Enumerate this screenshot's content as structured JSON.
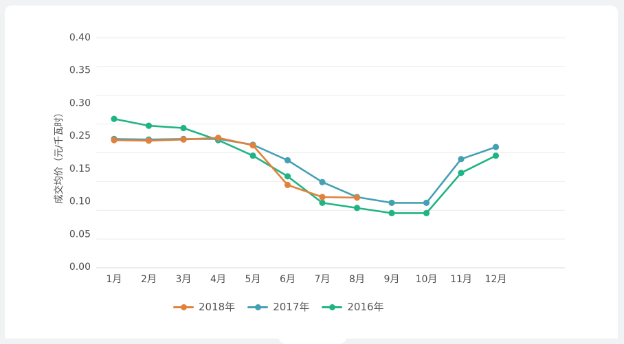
{
  "page": {
    "background_color": "#f1f2f3",
    "card_color": "#ffffff"
  },
  "chart_data": {
    "type": "line",
    "title": "",
    "xlabel": "",
    "ylabel": "成交均价（元/千瓦时）",
    "categories": [
      "1月",
      "2月",
      "3月",
      "4月",
      "5月",
      "6月",
      "7月",
      "8月",
      "9月",
      "10月",
      "11月",
      "12月"
    ],
    "series": [
      {
        "name": "2018年",
        "color": "#e0813c",
        "values": [
          0.222,
          0.221,
          0.223,
          0.226,
          0.213,
          0.144,
          0.123,
          0.122,
          null,
          null,
          null,
          null
        ]
      },
      {
        "name": "2017年",
        "color": "#46a0b4",
        "values": [
          0.224,
          0.223,
          0.224,
          0.224,
          0.214,
          0.187,
          0.149,
          0.123,
          0.113,
          0.113,
          0.189,
          0.21
        ]
      },
      {
        "name": "2016年",
        "color": "#20b484",
        "values": [
          0.259,
          0.247,
          0.243,
          0.222,
          0.195,
          0.159,
          0.113,
          0.104,
          0.095,
          0.095,
          0.165,
          0.195
        ]
      }
    ],
    "y_axis": {
      "min": 0.0,
      "max": 0.4,
      "gridline_step": 0.05,
      "tick_labels_shown": [
        "0.40",
        "0.35",
        "0.30",
        "0.25",
        "0.15",
        "0.10",
        "0.05",
        "0.00"
      ]
    },
    "grid": "horizontal-only",
    "legend_position": "bottom",
    "legend_labels": [
      "2018年",
      "2017年",
      "2016年"
    ],
    "colors": {
      "gridline": "#ebebeb",
      "baseline": "#d9d9d9",
      "axis_text": "#4c4c4c",
      "legend_text": "#555555"
    }
  }
}
